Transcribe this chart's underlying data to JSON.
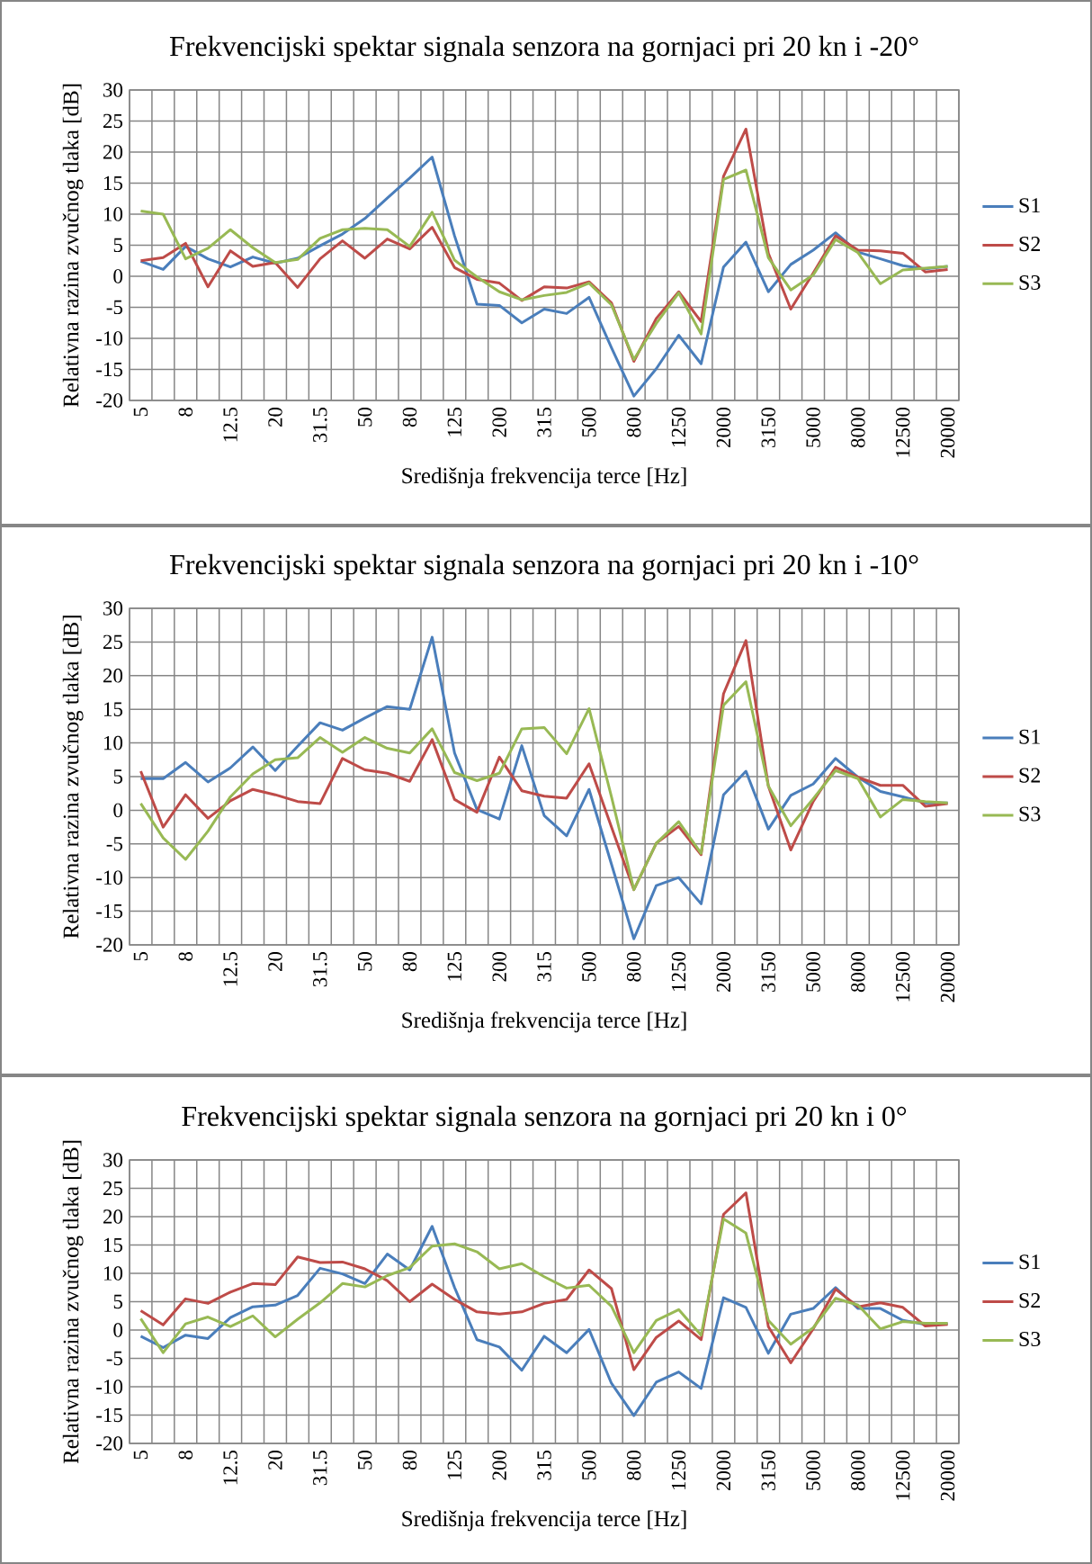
{
  "chart_data": [
    {
      "type": "line",
      "title": "Frekvencijski spektar signala senzora na gornjaci pri 20 kn i -20°",
      "xlabel": "Središnja frekvencija terce [Hz]",
      "ylabel": "Relativna razina zvučnog tlaka [dB]",
      "categories": [
        "5",
        null,
        "8",
        null,
        "12.5",
        null,
        "20",
        null,
        "31.5",
        null,
        "50",
        null,
        "80",
        null,
        "125",
        null,
        "200",
        null,
        "315",
        null,
        "500",
        null,
        "800",
        null,
        "1250",
        null,
        "2000",
        null,
        "3150",
        null,
        "5000",
        null,
        "8000",
        null,
        "12500",
        null,
        "20000"
      ],
      "series": [
        {
          "name": "S1",
          "color": "#4a7ebb",
          "values": [
            2.4,
            1.1,
            4.8,
            2.8,
            1.5,
            3.1,
            2.1,
            2.9,
            4.9,
            6.8,
            9.3,
            12.6,
            15.8,
            19.2,
            6.5,
            -4.5,
            -4.7,
            -7.5,
            -5.3,
            -6.0,
            -3.4,
            -11.5,
            -19.3,
            -14.9,
            -9.5,
            -14.1,
            1.5,
            5.5,
            -2.5,
            1.9,
            4.2,
            7.0,
            3.9,
            2.8,
            1.7,
            1.2,
            1.6
          ]
        },
        {
          "name": "S2",
          "color": "#be4b48",
          "values": [
            2.5,
            3.0,
            5.3,
            -1.7,
            4.1,
            1.6,
            2.2,
            -1.8,
            2.8,
            5.7,
            2.9,
            6.0,
            4.4,
            7.9,
            1.4,
            -0.5,
            -1.1,
            -3.9,
            -1.7,
            -1.9,
            -0.9,
            -4.3,
            -13.7,
            -6.8,
            -2.5,
            -7.3,
            16.1,
            23.7,
            3.7,
            -5.3,
            0.5,
            6.5,
            4.2,
            4.1,
            3.7,
            0.7,
            1.1
          ]
        },
        {
          "name": "S3",
          "color": "#98b954",
          "values": [
            10.5,
            10.0,
            2.8,
            4.5,
            7.5,
            4.6,
            2.2,
            2.7,
            6.1,
            7.5,
            7.7,
            7.5,
            4.8,
            10.3,
            2.6,
            -0.1,
            -2.5,
            -3.8,
            -3.1,
            -2.6,
            -1.1,
            -4.6,
            -13.4,
            -7.6,
            -2.7,
            -9.3,
            15.6,
            17.1,
            3.0,
            -2.2,
            0.2,
            5.9,
            3.8,
            -1.2,
            1.0,
            1.3,
            1.6
          ]
        }
      ],
      "ylim": [
        -20,
        30
      ],
      "yticks": [
        -20,
        -15,
        -10,
        -5,
        0,
        5,
        10,
        15,
        20,
        25,
        30
      ],
      "grid": true,
      "legend": "right",
      "marker": "none",
      "line_style": "solid"
    },
    {
      "type": "line",
      "title": "Frekvencijski spektar signala senzora na gornjaci pri 20 kn i -10°",
      "xlabel": "Središnja frekvencija terce [Hz]",
      "ylabel": "Relativna razina zvučnog tlaka [dB]",
      "categories": [
        "5",
        null,
        "8",
        null,
        "12.5",
        null,
        "20",
        null,
        "31.5",
        null,
        "50",
        null,
        "80",
        null,
        "125",
        null,
        "200",
        null,
        "315",
        null,
        "500",
        null,
        "800",
        null,
        "1250",
        null,
        "2000",
        null,
        "3150",
        null,
        "5000",
        null,
        "8000",
        null,
        "12500",
        null,
        "20000"
      ],
      "series": [
        {
          "name": "S1",
          "color": "#4a7ebb",
          "values": [
            4.7,
            4.7,
            7.1,
            4.2,
            6.3,
            9.4,
            5.9,
            9.5,
            13.0,
            11.9,
            13.7,
            15.4,
            15.0,
            25.7,
            8.5,
            0.1,
            -1.3,
            9.6,
            -0.8,
            -3.8,
            3.1,
            -8.0,
            -19.1,
            -11.2,
            -10.0,
            -13.9,
            2.3,
            5.8,
            -2.8,
            2.2,
            3.9,
            7.7,
            4.9,
            2.8,
            2.0,
            1.1,
            1.1
          ]
        },
        {
          "name": "S2",
          "color": "#be4b48",
          "values": [
            5.8,
            -2.5,
            2.3,
            -1.2,
            1.4,
            3.1,
            2.3,
            1.3,
            1.0,
            7.7,
            6.0,
            5.5,
            4.3,
            10.5,
            1.6,
            -0.3,
            7.9,
            2.9,
            2.1,
            1.8,
            6.9,
            -2.5,
            -11.8,
            -4.9,
            -2.4,
            -6.6,
            17.3,
            25.2,
            3.6,
            -5.9,
            1.3,
            6.4,
            4.9,
            3.7,
            3.7,
            0.6,
            1.0
          ]
        },
        {
          "name": "S3",
          "color": "#98b954",
          "values": [
            1.0,
            -4.1,
            -7.3,
            -3.1,
            2.0,
            5.4,
            7.5,
            7.8,
            10.8,
            8.6,
            10.8,
            9.2,
            8.5,
            12.1,
            5.6,
            4.4,
            5.5,
            12.1,
            12.3,
            8.4,
            15.1,
            2.0,
            -11.8,
            -4.9,
            -1.7,
            -6.4,
            15.6,
            19.1,
            3.6,
            -2.3,
            1.7,
            5.9,
            4.7,
            -1.0,
            1.6,
            1.3,
            1.1
          ]
        }
      ],
      "ylim": [
        -20,
        30
      ],
      "yticks": [
        -20,
        -15,
        -10,
        -5,
        0,
        5,
        10,
        15,
        20,
        25,
        30
      ],
      "grid": true,
      "legend": "right",
      "marker": "none",
      "line_style": "solid"
    },
    {
      "type": "line",
      "title": "Frekvencijski spektar signala senzora na gornjaci pri 20 kn i 0°",
      "xlabel": "Središnja frekvencija terce [Hz]",
      "ylabel": "Relativna razina zvučnog tlaka [dB]",
      "categories": [
        "5",
        null,
        "8",
        null,
        "12.5",
        null,
        "20",
        null,
        "31.5",
        null,
        "50",
        null,
        "80",
        null,
        "125",
        null,
        "200",
        null,
        "315",
        null,
        "500",
        null,
        "800",
        null,
        "1250",
        null,
        "2000",
        null,
        "3150",
        null,
        "5000",
        null,
        "8000",
        null,
        "12500",
        null,
        "20000"
      ],
      "series": [
        {
          "name": "S1",
          "color": "#4a7ebb",
          "values": [
            -1.1,
            -3.1,
            -0.9,
            -1.5,
            2.2,
            4.1,
            4.4,
            6.1,
            10.9,
            9.9,
            8.2,
            13.4,
            10.6,
            18.3,
            7.5,
            -1.7,
            -3.0,
            -7.1,
            -1.1,
            -4.0,
            0.1,
            -9.4,
            -15.1,
            -9.2,
            -7.4,
            -10.3,
            5.7,
            4.0,
            -4.1,
            2.8,
            3.8,
            7.5,
            3.8,
            3.8,
            1.7,
            1.0,
            1.1
          ]
        },
        {
          "name": "S2",
          "color": "#be4b48",
          "values": [
            3.4,
            0.9,
            5.5,
            4.7,
            6.7,
            8.2,
            8.0,
            12.9,
            11.9,
            12.0,
            10.8,
            8.7,
            5.0,
            8.1,
            5.4,
            3.2,
            2.8,
            3.2,
            4.7,
            5.4,
            10.6,
            7.3,
            -7.0,
            -1.3,
            1.6,
            -1.7,
            20.4,
            24.2,
            0.6,
            -5.8,
            0.2,
            7.2,
            4.1,
            4.8,
            4.0,
            0.7,
            1.0
          ]
        },
        {
          "name": "S3",
          "color": "#98b954",
          "values": [
            2.0,
            -4.0,
            1.1,
            2.3,
            0.6,
            2.5,
            -1.2,
            1.9,
            4.8,
            8.2,
            7.6,
            9.6,
            11.0,
            14.8,
            15.2,
            13.8,
            10.8,
            11.7,
            9.4,
            7.4,
            7.9,
            4.2,
            -4.0,
            1.7,
            3.6,
            -0.9,
            19.6,
            17.1,
            1.7,
            -2.5,
            0.4,
            5.6,
            4.4,
            0.2,
            1.5,
            1.2,
            1.2
          ]
        }
      ],
      "ylim": [
        -20,
        30
      ],
      "yticks": [
        -20,
        -15,
        -10,
        -5,
        0,
        5,
        10,
        15,
        20,
        25,
        30
      ],
      "grid": true,
      "legend": "right",
      "marker": "none",
      "line_style": "solid"
    }
  ]
}
